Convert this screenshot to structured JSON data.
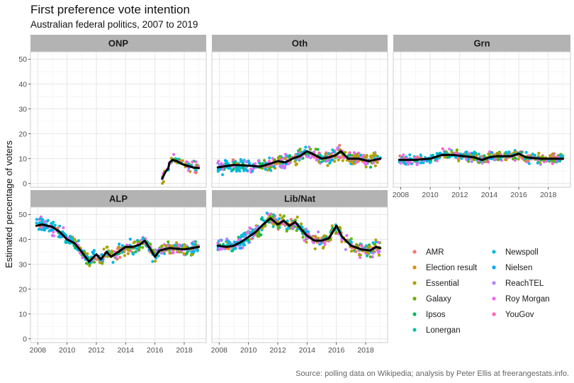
{
  "title": "First preference vote intention",
  "subtitle": "Australian federal politics, 2007 to 2019",
  "caption": "Source: polling data on Wikipedia; analysis by Peter Ellis at freerangestats.info.",
  "chart_data": {
    "type": "scatter",
    "ylabel": "Estimated percentage of voters",
    "xlabel": "",
    "xlim": [
      2007.5,
      2019.5
    ],
    "ylim": [
      -1.5,
      53
    ],
    "x_ticks": [
      "2008",
      "2010",
      "2012",
      "2014",
      "2016",
      "2018"
    ],
    "y_ticks": [
      "0",
      "10",
      "20",
      "30",
      "40",
      "50"
    ],
    "grid": true,
    "legend_position": "bottom-right",
    "colors": {
      "AMR": "#F8766D",
      "Election result": "#DB8E00",
      "Essential": "#AEA200",
      "Galaxy": "#64B200",
      "Ipsos": "#00BD5C",
      "Lonergan": "#00C1A7",
      "Newspoll": "#00BADE",
      "Nielsen": "#00A6FF",
      "ReachTEL": "#B385FF",
      "Roy Morgan": "#EF67EB",
      "YouGov": "#FF63B6"
    },
    "legend_col1": [
      "AMR",
      "Election result",
      "Essential",
      "Galaxy",
      "Ipsos",
      "Lonergan"
    ],
    "legend_col2": [
      "Newspoll",
      "Nielsen",
      "ReachTEL",
      "Roy Morgan",
      "YouGov"
    ],
    "panels": [
      {
        "name": "ONP",
        "trend": [
          [
            2016.5,
            2
          ],
          [
            2016.7,
            4.5
          ],
          [
            2016.9,
            6
          ],
          [
            2017.0,
            8.5
          ],
          [
            2017.2,
            9.5
          ],
          [
            2017.5,
            9
          ],
          [
            2017.8,
            8
          ],
          [
            2018.0,
            7.5
          ],
          [
            2018.3,
            7
          ],
          [
            2018.6,
            6.5
          ],
          [
            2019.0,
            6.2
          ]
        ],
        "start": 2016.5,
        "end": 2019.0,
        "spread": 1.8
      },
      {
        "name": "Oth",
        "trend": [
          [
            2007.9,
            6.5
          ],
          [
            2009,
            7.5
          ],
          [
            2010,
            7.2
          ],
          [
            2010.8,
            6.8
          ],
          [
            2011.5,
            8
          ],
          [
            2012,
            9
          ],
          [
            2012.5,
            8.5
          ],
          [
            2013,
            10
          ],
          [
            2013.5,
            11
          ],
          [
            2014,
            13
          ],
          [
            2014.5,
            11.5
          ],
          [
            2015,
            10
          ],
          [
            2015.5,
            10.5
          ],
          [
            2016,
            11.5
          ],
          [
            2016.3,
            13
          ],
          [
            2016.8,
            10
          ],
          [
            2017.5,
            10
          ],
          [
            2018.2,
            9
          ],
          [
            2019,
            10
          ]
        ],
        "start": 2007.9,
        "end": 2019.0,
        "spread": 2.2
      },
      {
        "name": "Grn",
        "trend": [
          [
            2007.9,
            9.5
          ],
          [
            2009,
            9.5
          ],
          [
            2010,
            10
          ],
          [
            2010.8,
            11.5
          ],
          [
            2011.5,
            11.5
          ],
          [
            2012.3,
            11
          ],
          [
            2013,
            10.5
          ],
          [
            2013.5,
            9.5
          ],
          [
            2014,
            10.5
          ],
          [
            2014.5,
            11
          ],
          [
            2015.5,
            11
          ],
          [
            2016,
            12
          ],
          [
            2016.5,
            10.5
          ],
          [
            2017.5,
            10
          ],
          [
            2018.5,
            10
          ],
          [
            2019,
            10
          ]
        ],
        "start": 2007.9,
        "end": 2019.0,
        "spread": 1.6
      },
      {
        "name": "ALP",
        "trend": [
          [
            2007.9,
            45.5
          ],
          [
            2008.3,
            46
          ],
          [
            2009,
            45
          ],
          [
            2009.5,
            43
          ],
          [
            2010,
            40
          ],
          [
            2010.5,
            38.5
          ],
          [
            2011,
            35
          ],
          [
            2011.5,
            31
          ],
          [
            2012,
            34
          ],
          [
            2012.3,
            32
          ],
          [
            2012.7,
            35
          ],
          [
            2013,
            33
          ],
          [
            2013.5,
            35
          ],
          [
            2014,
            37
          ],
          [
            2014.5,
            37
          ],
          [
            2015,
            38
          ],
          [
            2015.3,
            39.5
          ],
          [
            2015.7,
            36
          ],
          [
            2016,
            33
          ],
          [
            2016.3,
            35.5
          ],
          [
            2017,
            36.5
          ],
          [
            2018,
            36
          ],
          [
            2019,
            37
          ]
        ],
        "start": 2007.9,
        "end": 2019.0,
        "spread": 2.3
      },
      {
        "name": "Lib/Nat",
        "trend": [
          [
            2007.9,
            37.5
          ],
          [
            2008.5,
            37
          ],
          [
            2009,
            37.5
          ],
          [
            2009.5,
            39
          ],
          [
            2010,
            41
          ],
          [
            2010.5,
            43
          ],
          [
            2011,
            46
          ],
          [
            2011.5,
            48.5
          ],
          [
            2012,
            46
          ],
          [
            2012.4,
            47.5
          ],
          [
            2012.8,
            45.5
          ],
          [
            2013.2,
            47
          ],
          [
            2013.6,
            44
          ],
          [
            2014,
            41.5
          ],
          [
            2014.5,
            39.5
          ],
          [
            2015,
            39.5
          ],
          [
            2015.5,
            40.5
          ],
          [
            2016,
            45.5
          ],
          [
            2016.4,
            41
          ],
          [
            2017,
            37.5
          ],
          [
            2017.7,
            36
          ],
          [
            2018.3,
            35.5
          ],
          [
            2018.7,
            37
          ],
          [
            2019,
            36.5
          ]
        ],
        "start": 2007.9,
        "end": 2019.0,
        "spread": 2.3
      }
    ]
  }
}
